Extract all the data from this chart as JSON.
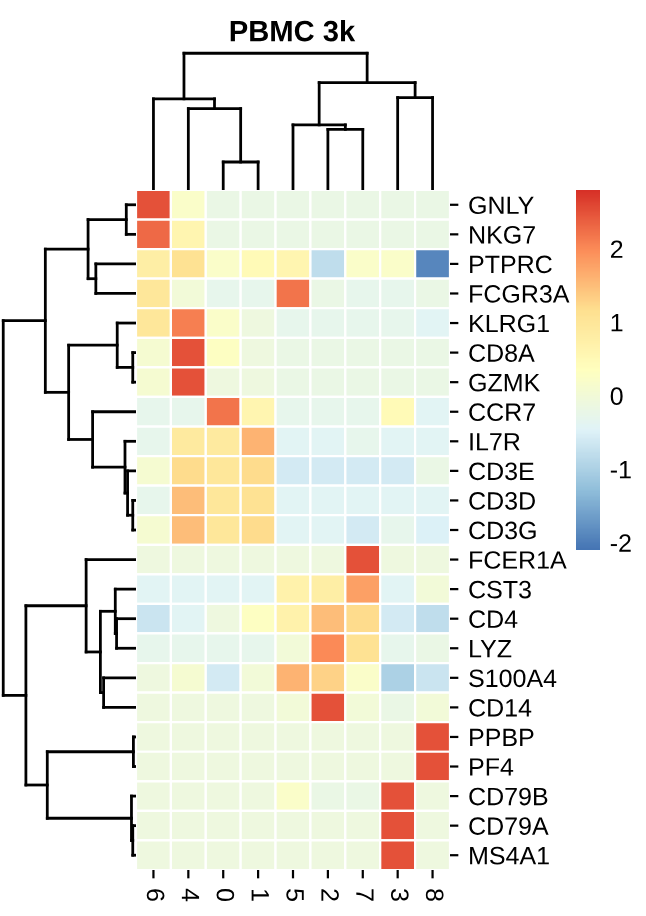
{
  "chart_data": {
    "type": "heatmap",
    "title": "PBMC 3k",
    "categories": [
      "6",
      "4",
      "0",
      "1",
      "5",
      "2",
      "7",
      "3",
      "8"
    ],
    "y_categories": [
      "GNLY",
      "NKG7",
      "PTPRC",
      "FCGR3A",
      "KLRG1",
      "CD8A",
      "GZMK",
      "CCR7",
      "IL7R",
      "CD3E",
      "CD3D",
      "CD3G",
      "FCER1A",
      "CST3",
      "CD4",
      "LYZ",
      "S100A4",
      "CD14",
      "PPBP",
      "PF4",
      "CD79B",
      "CD79A",
      "MS4A1"
    ],
    "cells": [
      [
        2.5,
        0.2,
        -0.2,
        -0.2,
        -0.2,
        -0.2,
        -0.2,
        -0.2,
        -0.2
      ],
      [
        2.3,
        0.6,
        -0.2,
        -0.2,
        -0.2,
        -0.2,
        -0.2,
        -0.2,
        -0.2
      ],
      [
        0.8,
        1.1,
        0.2,
        0.5,
        0.6,
        -0.8,
        0.2,
        0.2,
        -1.9
      ],
      [
        1.0,
        0.0,
        -0.3,
        -0.3,
        2.2,
        -0.2,
        -0.3,
        -0.3,
        -0.2
      ],
      [
        1.0,
        2.1,
        0.2,
        -0.1,
        -0.3,
        -0.3,
        -0.3,
        -0.3,
        -0.4
      ],
      [
        0.1,
        2.5,
        0.3,
        -0.1,
        -0.2,
        -0.2,
        -0.2,
        -0.2,
        -0.2
      ],
      [
        0.1,
        2.5,
        -0.1,
        -0.1,
        -0.2,
        -0.2,
        -0.2,
        -0.2,
        -0.2
      ],
      [
        -0.3,
        -0.3,
        2.2,
        0.6,
        -0.3,
        -0.3,
        -0.3,
        0.5,
        -0.4
      ],
      [
        -0.3,
        0.9,
        0.9,
        1.6,
        -0.4,
        -0.4,
        -0.3,
        -0.4,
        -0.4
      ],
      [
        0.1,
        1.2,
        1.0,
        1.2,
        -0.6,
        -0.6,
        -0.6,
        -0.6,
        -0.2
      ],
      [
        -0.3,
        1.5,
        1.0,
        1.1,
        -0.4,
        -0.4,
        -0.4,
        -0.4,
        -0.4
      ],
      [
        0.1,
        1.5,
        1.0,
        1.2,
        -0.4,
        -0.4,
        -0.6,
        -0.3,
        -0.5
      ],
      [
        -0.1,
        -0.1,
        -0.1,
        -0.1,
        -0.1,
        -0.1,
        2.5,
        -0.1,
        -0.1
      ],
      [
        -0.4,
        -0.4,
        -0.4,
        -0.4,
        0.7,
        0.8,
        1.8,
        -0.4,
        0.0
      ],
      [
        -0.7,
        -0.4,
        -0.1,
        0.3,
        0.7,
        1.5,
        1.2,
        -0.6,
        -0.8
      ],
      [
        -0.3,
        -0.3,
        -0.3,
        -0.3,
        0.0,
        2.0,
        1.1,
        -0.3,
        -0.2
      ],
      [
        -0.1,
        0.1,
        -0.6,
        0.0,
        1.6,
        1.3,
        0.2,
        -1.0,
        -0.7
      ],
      [
        -0.1,
        -0.1,
        -0.1,
        -0.1,
        0.0,
        2.5,
        0.0,
        -0.2,
        0.0
      ],
      [
        -0.1,
        -0.1,
        -0.1,
        -0.1,
        -0.1,
        -0.1,
        -0.1,
        -0.1,
        2.5
      ],
      [
        -0.1,
        -0.1,
        -0.1,
        -0.1,
        -0.1,
        -0.1,
        -0.1,
        -0.1,
        2.5
      ],
      [
        -0.1,
        -0.1,
        -0.1,
        -0.1,
        0.2,
        -0.2,
        -0.2,
        2.5,
        -0.1
      ],
      [
        -0.1,
        -0.1,
        -0.1,
        -0.1,
        -0.1,
        -0.1,
        -0.1,
        2.5,
        -0.1
      ],
      [
        -0.1,
        -0.1,
        -0.1,
        -0.1,
        -0.1,
        -0.1,
        -0.1,
        2.5,
        -0.1
      ]
    ],
    "clim": [
      -2.1,
      2.8
    ],
    "cticks": [
      -2,
      -1,
      0,
      1,
      2
    ]
  }
}
